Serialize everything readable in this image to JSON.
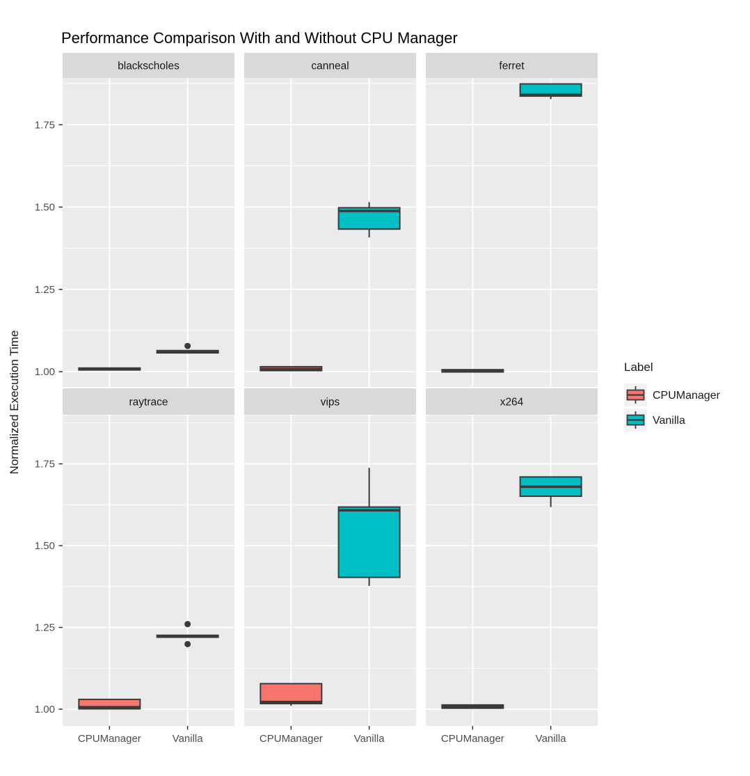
{
  "labels": {
    "title": "Performance Comparison With and Without CPU Manager",
    "y_axis_title": "Normalized Execution Time",
    "legend_title": "Label"
  },
  "y_tick_labels": [
    "1.00",
    "1.25",
    "1.50",
    "1.75"
  ],
  "x_category_labels": [
    "CPUManager",
    "Vanilla"
  ],
  "facet_labels": [
    "blackscholes",
    "canneal",
    "ferret",
    "raytrace",
    "vips",
    "x264"
  ],
  "legend": {
    "title": "Label",
    "items": [
      {
        "label": "CPUManager",
        "color": "#F8766D"
      },
      {
        "label": "Vanilla",
        "color": "#00BFC4"
      }
    ]
  },
  "style": {
    "panel_bg": "#EBEBEB",
    "strip_bg": "#D9D9D9",
    "grid_color": "#FFFFFF",
    "box_stroke": "#3A3A3A",
    "outlier_color": "#3A3A3A",
    "tick_mark_color": "#333333",
    "key_bg": "#F2F2F2"
  },
  "chart_data": {
    "type": "boxplot",
    "title": "Performance Comparison With and Without CPU Manager",
    "ylabel": "Normalized Execution Time",
    "xlabel": "",
    "ylim": [
      0.95,
      1.9
    ],
    "yticks": [
      1.0,
      1.25,
      1.5,
      1.75
    ],
    "yticks_minor": [
      1.125,
      1.375,
      1.625,
      1.875
    ],
    "grid": true,
    "legend_position": "right",
    "legend_title": "Label",
    "categories": [
      "CPUManager",
      "Vanilla"
    ],
    "facets": [
      "blackscholes",
      "canneal",
      "ferret",
      "raytrace",
      "vips",
      "x264"
    ],
    "series": [
      {
        "facet": "blackscholes",
        "group": "CPUManager",
        "whisker_low": 1.005,
        "q1": 1.005,
        "median": 1.008,
        "q3": 1.011,
        "whisker_high": 1.011,
        "outliers": []
      },
      {
        "facet": "blackscholes",
        "group": "Vanilla",
        "whisker_low": 1.057,
        "q1": 1.057,
        "median": 1.06,
        "q3": 1.064,
        "whisker_high": 1.064,
        "outliers": [
          1.078
        ]
      },
      {
        "facet": "canneal",
        "group": "CPUManager",
        "whisker_low": 1.003,
        "q1": 1.003,
        "median": 1.008,
        "q3": 1.015,
        "whisker_high": 1.015,
        "outliers": []
      },
      {
        "facet": "canneal",
        "group": "Vanilla",
        "whisker_low": 1.408,
        "q1": 1.433,
        "median": 1.488,
        "q3": 1.498,
        "whisker_high": 1.515,
        "outliers": []
      },
      {
        "facet": "ferret",
        "group": "CPUManager",
        "whisker_low": 0.999,
        "q1": 0.999,
        "median": 1.002,
        "q3": 1.006,
        "whisker_high": 1.006,
        "outliers": []
      },
      {
        "facet": "ferret",
        "group": "Vanilla",
        "whisker_low": 1.828,
        "q1": 1.837,
        "median": 1.841,
        "q3": 1.874,
        "whisker_high": 1.876,
        "outliers": []
      },
      {
        "facet": "raytrace",
        "group": "CPUManager",
        "whisker_low": 1.001,
        "q1": 1.001,
        "median": 1.006,
        "q3": 1.03,
        "whisker_high": 1.03,
        "outliers": []
      },
      {
        "facet": "raytrace",
        "group": "Vanilla",
        "whisker_low": 1.22,
        "q1": 1.22,
        "median": 1.223,
        "q3": 1.226,
        "whisker_high": 1.226,
        "outliers": [
          1.26,
          1.199
        ]
      },
      {
        "facet": "vips",
        "group": "CPUManager",
        "whisker_low": 1.01,
        "q1": 1.017,
        "median": 1.022,
        "q3": 1.078,
        "whisker_high": 1.078,
        "outliers": []
      },
      {
        "facet": "vips",
        "group": "Vanilla",
        "whisker_low": 1.377,
        "q1": 1.403,
        "median": 1.608,
        "q3": 1.618,
        "whisker_high": 1.738,
        "outliers": []
      },
      {
        "facet": "x264",
        "group": "CPUManager",
        "whisker_low": 1.003,
        "q1": 1.003,
        "median": 1.008,
        "q3": 1.013,
        "whisker_high": 1.013,
        "outliers": []
      },
      {
        "facet": "x264",
        "group": "Vanilla",
        "whisker_low": 1.618,
        "q1": 1.651,
        "median": 1.68,
        "q3": 1.71,
        "whisker_high": 1.71,
        "outliers": []
      }
    ]
  }
}
